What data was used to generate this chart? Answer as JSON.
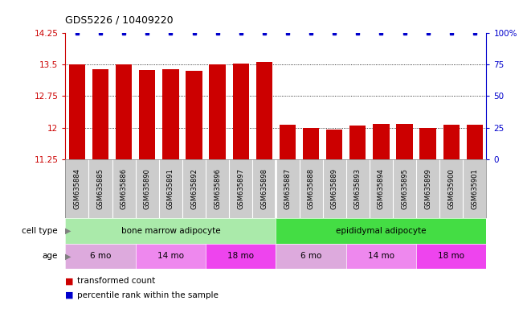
{
  "title": "GDS5226 / 10409220",
  "samples": [
    "GSM635884",
    "GSM635885",
    "GSM635886",
    "GSM635890",
    "GSM635891",
    "GSM635892",
    "GSM635896",
    "GSM635897",
    "GSM635898",
    "GSM635887",
    "GSM635888",
    "GSM635889",
    "GSM635893",
    "GSM635894",
    "GSM635895",
    "GSM635899",
    "GSM635900",
    "GSM635901"
  ],
  "transformed_count": [
    13.5,
    13.38,
    13.5,
    13.37,
    13.38,
    13.35,
    13.5,
    13.52,
    13.55,
    12.08,
    12.0,
    11.95,
    12.05,
    12.1,
    12.1,
    12.0,
    12.08,
    12.07
  ],
  "percentile_rank": [
    100,
    100,
    100,
    100,
    100,
    100,
    100,
    100,
    100,
    100,
    100,
    100,
    100,
    100,
    100,
    100,
    100,
    100
  ],
  "ylim_left": [
    11.25,
    14.25
  ],
  "ylim_right": [
    0,
    100
  ],
  "yticks_left": [
    11.25,
    12.0,
    12.75,
    13.5,
    14.25
  ],
  "yticks_right": [
    0,
    25,
    50,
    75,
    100
  ],
  "ytick_labels_left": [
    "11.25",
    "12",
    "12.75",
    "13.5",
    "14.25"
  ],
  "ytick_labels_right": [
    "0",
    "25",
    "50",
    "75",
    "100%"
  ],
  "bar_color": "#cc0000",
  "dot_color": "#0000cc",
  "xticklabel_bg": "#cccccc",
  "cell_type_groups": [
    {
      "label": "bone marrow adipocyte",
      "start": 0,
      "end": 8,
      "color": "#aaeaaa"
    },
    {
      "label": "epididymal adipocyte",
      "start": 9,
      "end": 17,
      "color": "#44dd44"
    }
  ],
  "age_groups": [
    {
      "label": "6 mo",
      "start": 0,
      "end": 2,
      "color": "#ddaadd"
    },
    {
      "label": "14 mo",
      "start": 3,
      "end": 5,
      "color": "#ee88ee"
    },
    {
      "label": "18 mo",
      "start": 6,
      "end": 8,
      "color": "#ee44ee"
    },
    {
      "label": "6 mo",
      "start": 9,
      "end": 11,
      "color": "#ddaadd"
    },
    {
      "label": "14 mo",
      "start": 12,
      "end": 14,
      "color": "#ee88ee"
    },
    {
      "label": "18 mo",
      "start": 15,
      "end": 17,
      "color": "#ee44ee"
    }
  ],
  "legend_items": [
    {
      "label": "transformed count",
      "color": "#cc0000"
    },
    {
      "label": "percentile rank within the sample",
      "color": "#0000cc"
    }
  ],
  "cell_type_label": "cell type",
  "age_label": "age",
  "background_color": "#ffffff"
}
